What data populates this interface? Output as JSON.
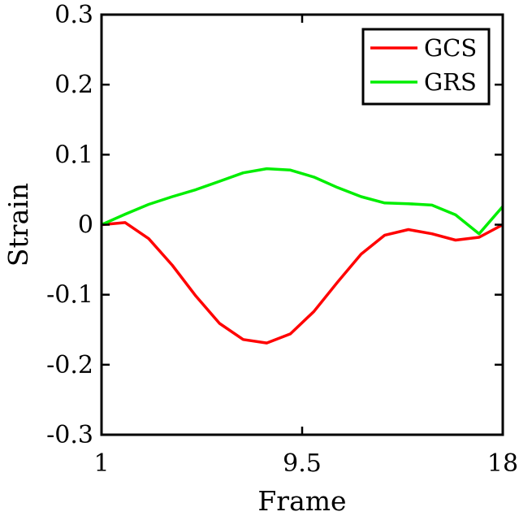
{
  "chart_data": {
    "type": "line",
    "title": "",
    "xlabel": "Frame",
    "ylabel": "Strain",
    "xlim": [
      1,
      18
    ],
    "ylim": [
      -0.3,
      0.3
    ],
    "xticks": [
      1,
      9.5,
      18
    ],
    "xtick_labels": [
      "1",
      "9.5",
      "18"
    ],
    "yticks": [
      -0.3,
      -0.2,
      -0.1,
      0,
      0.1,
      0.2,
      0.3
    ],
    "ytick_labels": [
      "-0.3",
      "-0.2",
      "-0.1",
      "0",
      "0.1",
      "0.2",
      "0.3"
    ],
    "grid": false,
    "legend_position": "top-right",
    "x": [
      1,
      2,
      3,
      4,
      5,
      6,
      7,
      8,
      9,
      10,
      11,
      12,
      13,
      14,
      15,
      16,
      17,
      18
    ],
    "series": [
      {
        "name": "GCS",
        "color": "#ff0000",
        "values": [
          0,
          0.003,
          -0.02,
          -0.058,
          -0.102,
          -0.141,
          -0.164,
          -0.169,
          -0.156,
          -0.124,
          -0.082,
          -0.042,
          -0.015,
          -0.007,
          -0.013,
          -0.022,
          -0.018,
          0
        ]
      },
      {
        "name": "GRS",
        "color": "#00ee00",
        "values": [
          0,
          0.015,
          0.029,
          0.04,
          0.05,
          0.062,
          0.074,
          0.08,
          0.078,
          0.068,
          0.053,
          0.04,
          0.031,
          0.03,
          0.028,
          0.014,
          -0.013,
          0.026
        ]
      }
    ]
  }
}
